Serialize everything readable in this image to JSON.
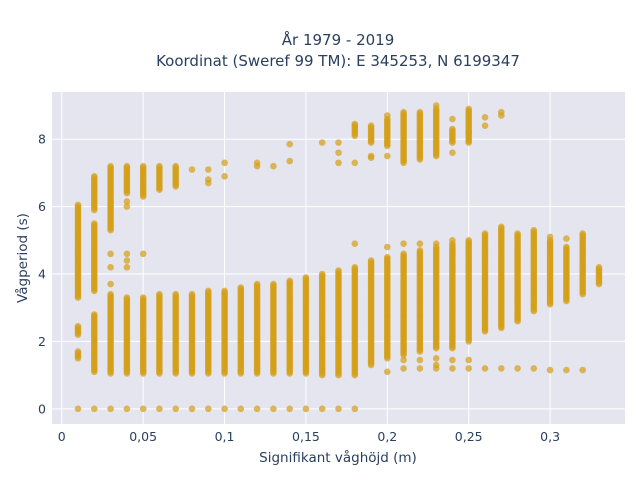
{
  "chart_data": {
    "type": "scatter",
    "title_line1": "År 1979 - 2019",
    "title_line2": "Koordinat (Sweref 99 TM): E 345253, N 6199347",
    "xlabel": "Signifikant våghöjd (m)",
    "ylabel": "Vågperiod (s)",
    "xlim": [
      -0.006,
      0.346
    ],
    "ylim": [
      -0.45,
      9.4
    ],
    "x_ticks": [
      {
        "value": 0,
        "label": "0"
      },
      {
        "value": 0.05,
        "label": "0,05"
      },
      {
        "value": 0.1,
        "label": "0,1"
      },
      {
        "value": 0.15,
        "label": "0,15"
      },
      {
        "value": 0.2,
        "label": "0,2"
      },
      {
        "value": 0.25,
        "label": "0,25"
      },
      {
        "value": 0.3,
        "label": "0,3"
      }
    ],
    "y_ticks": [
      {
        "value": 0,
        "label": "0"
      },
      {
        "value": 2,
        "label": "2"
      },
      {
        "value": 4,
        "label": "4"
      },
      {
        "value": 6,
        "label": "6"
      },
      {
        "value": 8,
        "label": "8"
      }
    ],
    "grid": true,
    "marker_color": "#d4a017",
    "plot_bg": "#e5e5f0",
    "columns": [
      {
        "x": 0.01,
        "ranges": [
          [
            1.5,
            1.7
          ],
          [
            2.2,
            2.45
          ],
          [
            3.3,
            6.05
          ]
        ],
        "points": [
          0
        ]
      },
      {
        "x": 0.02,
        "ranges": [
          [
            1.1,
            2.8
          ],
          [
            3.5,
            5.5
          ],
          [
            5.9,
            6.9
          ]
        ],
        "points": [
          0
        ]
      },
      {
        "x": 0.03,
        "ranges": [
          [
            1.05,
            3.4
          ],
          [
            5.3,
            7.2
          ]
        ],
        "points": [
          0,
          3.7,
          4.2,
          4.6
        ]
      },
      {
        "x": 0.04,
        "ranges": [
          [
            1.05,
            3.3
          ],
          [
            6.4,
            7.2
          ]
        ],
        "points": [
          0,
          4.2,
          4.4,
          4.6,
          6.0,
          6.15
        ]
      },
      {
        "x": 0.05,
        "ranges": [
          [
            1.05,
            3.3
          ],
          [
            6.3,
            7.2
          ]
        ],
        "points": [
          0,
          4.6
        ]
      },
      {
        "x": 0.06,
        "ranges": [
          [
            1.05,
            3.4
          ],
          [
            6.5,
            7.2
          ]
        ],
        "points": [
          0
        ]
      },
      {
        "x": 0.07,
        "ranges": [
          [
            1.05,
            3.4
          ],
          [
            6.6,
            7.2
          ]
        ],
        "points": [
          0
        ]
      },
      {
        "x": 0.08,
        "ranges": [
          [
            1.05,
            3.4
          ]
        ],
        "points": [
          0,
          7.1
        ]
      },
      {
        "x": 0.09,
        "ranges": [
          [
            1.05,
            3.5
          ]
        ],
        "points": [
          0,
          6.7,
          6.8,
          7.1
        ]
      },
      {
        "x": 0.1,
        "ranges": [
          [
            1.05,
            3.5
          ]
        ],
        "points": [
          0,
          6.9,
          7.3
        ]
      },
      {
        "x": 0.11,
        "ranges": [
          [
            1.05,
            3.6
          ]
        ],
        "points": [
          0
        ]
      },
      {
        "x": 0.12,
        "ranges": [
          [
            1.05,
            3.7
          ]
        ],
        "points": [
          0,
          7.2,
          7.3
        ]
      },
      {
        "x": 0.13,
        "ranges": [
          [
            1.05,
            3.7
          ]
        ],
        "points": [
          0,
          7.2
        ]
      },
      {
        "x": 0.14,
        "ranges": [
          [
            1.05,
            3.8
          ]
        ],
        "points": [
          0,
          7.35,
          7.85
        ]
      },
      {
        "x": 0.15,
        "ranges": [
          [
            1.05,
            3.9
          ]
        ],
        "points": [
          0
        ]
      },
      {
        "x": 0.16,
        "ranges": [
          [
            1.0,
            4.0
          ]
        ],
        "points": [
          0,
          7.9
        ]
      },
      {
        "x": 0.17,
        "ranges": [
          [
            1.0,
            4.1
          ]
        ],
        "points": [
          0,
          7.3,
          7.6,
          7.9
        ]
      },
      {
        "x": 0.18,
        "ranges": [
          [
            1.0,
            4.2
          ],
          [
            8.1,
            8.45
          ]
        ],
        "points": [
          0,
          4.9,
          7.3
        ]
      },
      {
        "x": 0.19,
        "ranges": [
          [
            1.3,
            4.4
          ],
          [
            7.9,
            8.4
          ]
        ],
        "points": [
          7.5,
          7.45
        ]
      },
      {
        "x": 0.2,
        "ranges": [
          [
            1.5,
            4.5
          ],
          [
            7.8,
            8.6
          ]
        ],
        "points": [
          1.1,
          4.8,
          8.7,
          7.5
        ]
      },
      {
        "x": 0.21,
        "ranges": [
          [
            1.6,
            4.6
          ],
          [
            7.3,
            8.8
          ]
        ],
        "points": [
          1.45,
          1.2,
          4.9
        ]
      },
      {
        "x": 0.22,
        "ranges": [
          [
            1.7,
            4.7
          ],
          [
            7.4,
            8.8
          ]
        ],
        "points": [
          1.45,
          1.2,
          4.9
        ]
      },
      {
        "x": 0.23,
        "ranges": [
          [
            1.8,
            4.8
          ],
          [
            7.5,
            8.9
          ]
        ],
        "points": [
          1.2,
          1.3,
          1.5,
          4.9,
          9.0
        ]
      },
      {
        "x": 0.24,
        "ranges": [
          [
            1.8,
            4.9
          ],
          [
            7.9,
            8.3
          ]
        ],
        "points": [
          1.2,
          1.45,
          8.6,
          7.6,
          5.0
        ]
      },
      {
        "x": 0.25,
        "ranges": [
          [
            2.0,
            5.0
          ],
          [
            7.9,
            8.9
          ]
        ],
        "points": [
          1.2,
          1.45,
          8.2
        ]
      },
      {
        "x": 0.26,
        "ranges": [
          [
            2.3,
            5.2
          ]
        ],
        "points": [
          1.2,
          8.4,
          8.65
        ]
      },
      {
        "x": 0.27,
        "ranges": [
          [
            2.4,
            5.4
          ]
        ],
        "points": [
          1.2,
          8.7,
          8.8
        ]
      },
      {
        "x": 0.28,
        "ranges": [
          [
            2.6,
            5.2
          ]
        ],
        "points": [
          1.2
        ]
      },
      {
        "x": 0.29,
        "ranges": [
          [
            2.9,
            5.3
          ]
        ],
        "points": [
          1.2
        ]
      },
      {
        "x": 0.3,
        "ranges": [
          [
            3.1,
            5.0
          ]
        ],
        "points": [
          1.15,
          5.1
        ]
      },
      {
        "x": 0.31,
        "ranges": [
          [
            3.2,
            4.8
          ]
        ],
        "points": [
          1.15,
          5.05
        ]
      },
      {
        "x": 0.32,
        "ranges": [
          [
            3.4,
            5.2
          ]
        ],
        "points": [
          1.15
        ]
      },
      {
        "x": 0.33,
        "ranges": [
          [
            3.7,
            4.2
          ]
        ],
        "points": []
      }
    ]
  }
}
